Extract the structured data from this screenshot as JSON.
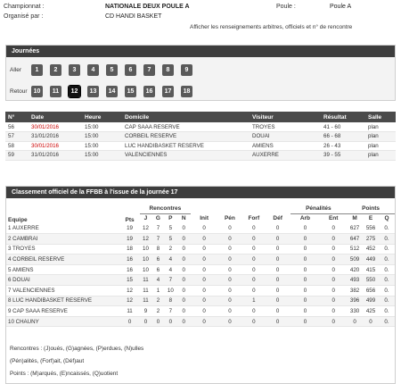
{
  "header": {
    "championnat_label": "Championnat :",
    "championnat_value": "NATIONALE DEUX POULE A",
    "poule_label": "Poule :",
    "poule_value": "Poule A",
    "organise_label": "Organisé par :",
    "organise_value": "CD HANDI BASKET",
    "afficher_link": "Afficher les renseignements arbitres, officiels et n° de rencontre"
  },
  "journees": {
    "title": "Journées",
    "aller_label": "Aller",
    "retour_label": "Retour",
    "aller": [
      "1",
      "2",
      "3",
      "4",
      "5",
      "6",
      "7",
      "8",
      "9"
    ],
    "retour": [
      "10",
      "11",
      "12",
      "13",
      "14",
      "15",
      "16",
      "17",
      "18"
    ],
    "selected": "12"
  },
  "matches": {
    "headers": [
      "N°",
      "Date",
      "Heure",
      "Domicile",
      "Visiteur",
      "Résultat",
      "Salle"
    ],
    "rows": [
      {
        "num": "56",
        "date": "30/01/2016",
        "heure": "15:00",
        "domicile": "CAP SAAA RESERVE",
        "visiteur": "TROYES",
        "resultat": "41 - 60",
        "salle": "plan",
        "date_red": true
      },
      {
        "num": "57",
        "date": "31/01/2016",
        "heure": "15:00",
        "domicile": "CORBEIL RESERVE",
        "visiteur": "DOUAI",
        "resultat": "66 - 68",
        "salle": "plan",
        "date_red": false
      },
      {
        "num": "58",
        "date": "30/01/2016",
        "heure": "15:00",
        "domicile": "LUC HANDIBASKET RESERVE",
        "visiteur": "AMIENS",
        "resultat": "26 - 43",
        "salle": "plan",
        "date_red": true
      },
      {
        "num": "59",
        "date": "31/01/2016",
        "heure": "15:00",
        "domicile": "VALENCIENNES",
        "visiteur": "AUXERRE",
        "resultat": "39 - 55",
        "salle": "plan",
        "date_red": false
      }
    ]
  },
  "classement": {
    "title": "Classement officiel de la FFBB à l'issue de la journée 17",
    "h_equipe": "Equipe",
    "h_pts": "Pts",
    "h_rencontres": "Rencontres",
    "h_penalites": "Pénalités",
    "h_points": "Points",
    "sub": [
      "J",
      "G",
      "P",
      "N",
      "Init",
      "Pén",
      "Forf",
      "Déf",
      "Arb",
      "Ent",
      "M",
      "E",
      "Q"
    ],
    "rows": [
      {
        "equipe": "1 AUXERRE",
        "pts": "19",
        "vals": [
          "12",
          "7",
          "5",
          "0",
          "0",
          "0",
          "0",
          "0",
          "0",
          "0",
          "627",
          "556",
          "0."
        ]
      },
      {
        "equipe": "2 CAMBRAI",
        "pts": "19",
        "vals": [
          "12",
          "7",
          "5",
          "0",
          "0",
          "0",
          "0",
          "0",
          "0",
          "0",
          "647",
          "275",
          "0."
        ]
      },
      {
        "equipe": "3 TROYES",
        "pts": "18",
        "vals": [
          "10",
          "8",
          "2",
          "0",
          "0",
          "0",
          "0",
          "0",
          "0",
          "0",
          "512",
          "452",
          "0."
        ]
      },
      {
        "equipe": "4 CORBEIL RESERVE",
        "pts": "16",
        "vals": [
          "10",
          "6",
          "4",
          "0",
          "0",
          "0",
          "0",
          "0",
          "0",
          "0",
          "509",
          "449",
          "0."
        ]
      },
      {
        "equipe": "5 AMIENS",
        "pts": "16",
        "vals": [
          "10",
          "6",
          "4",
          "0",
          "0",
          "0",
          "0",
          "0",
          "0",
          "0",
          "420",
          "415",
          "0."
        ]
      },
      {
        "equipe": "6 DOUAI",
        "pts": "15",
        "vals": [
          "11",
          "4",
          "7",
          "0",
          "0",
          "0",
          "0",
          "0",
          "0",
          "0",
          "493",
          "550",
          "0."
        ]
      },
      {
        "equipe": "7 VALENCIENNES",
        "pts": "12",
        "vals": [
          "11",
          "1",
          "10",
          "0",
          "0",
          "0",
          "0",
          "0",
          "0",
          "0",
          "382",
          "656",
          "0."
        ]
      },
      {
        "equipe": "8 LUC HANDIBASKET RESERVE",
        "pts": "12",
        "vals": [
          "11",
          "2",
          "8",
          "0",
          "0",
          "0",
          "1",
          "0",
          "0",
          "0",
          "396",
          "499",
          "0."
        ]
      },
      {
        "equipe": "9 CAP SAAA RESERVE",
        "pts": "11",
        "vals": [
          "9",
          "2",
          "7",
          "0",
          "0",
          "0",
          "0",
          "0",
          "0",
          "0",
          "330",
          "425",
          "0."
        ]
      },
      {
        "equipe": "10 CHAUNY",
        "pts": "0",
        "vals": [
          "0",
          "0",
          "0",
          "0",
          "0",
          "0",
          "0",
          "0",
          "0",
          "0",
          "0",
          "0",
          "0."
        ]
      }
    ],
    "legend1": "Rencontres : (J)oués, (G)agnées, (P)erdues, (N)ulles",
    "legend2": "(Pén)alités, (Forf)ait, (Déf)aut",
    "legend3": "Points : (M)arqués, (E)ncaissés, (Q)uotient"
  }
}
